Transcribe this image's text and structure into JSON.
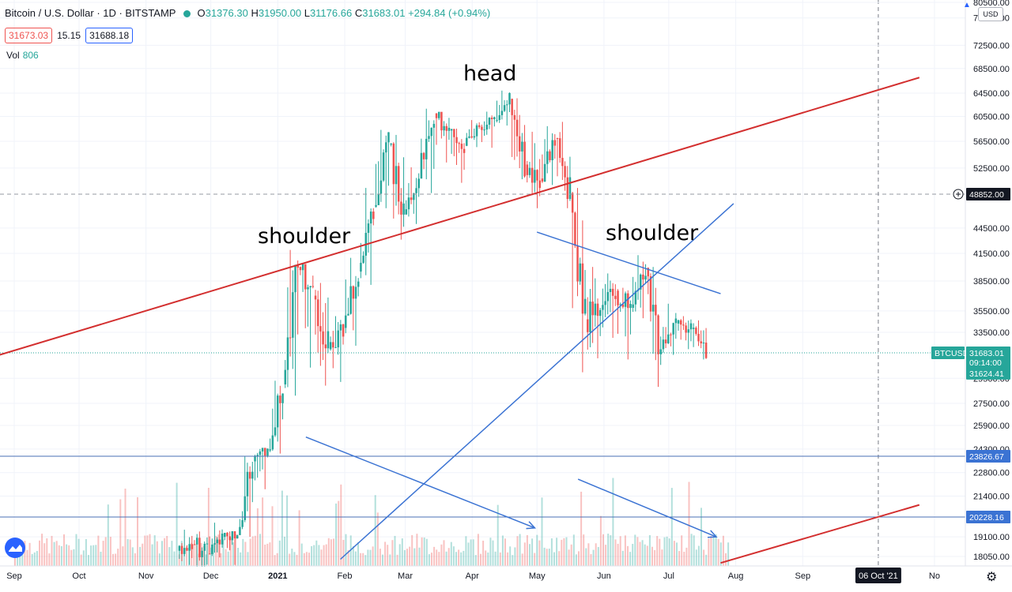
{
  "header": {
    "symbol": "Bitcoin / U.S. Dollar · 1D · BITSTAMP",
    "open_label": "O",
    "open": "31376.30",
    "high_label": "H",
    "high": "31950.00",
    "low_label": "L",
    "low": "31176.66",
    "close_label": "C",
    "close": "31683.01",
    "change": "+294.84 (+0.94%)"
  },
  "quote": {
    "bid": "31673.03",
    "spread": "15.15",
    "ask": "31688.18"
  },
  "volume": {
    "label": "Vol",
    "value": "806"
  },
  "currency": "USD",
  "annotations": {
    "shoulder_left": "shoulder",
    "head": "head",
    "shoulder_right": "shoulder"
  },
  "colors": {
    "up": "#26a69a",
    "down": "#ef5350",
    "trendline_red": "#d32f2f",
    "trendline_blue": "#3b73d3",
    "hline": "#4a6fb5",
    "price_line": "#26a69a"
  },
  "icons": {
    "logo": "tradingview-logo-icon",
    "settings": "gear-icon",
    "alert": "bell-icon",
    "crosshair": "crosshair-plus-icon"
  },
  "chart_data": {
    "type": "candlestick",
    "interval": "1D",
    "ylim": [
      17500,
      80500
    ],
    "y_ticks": [
      80500,
      77500,
      72500,
      68500,
      64500,
      60500,
      56500,
      52500,
      44500,
      41500,
      38500,
      35500,
      33500,
      29500,
      27500,
      25900,
      24300,
      22800,
      21400,
      19100,
      18050
    ],
    "x_ticks": [
      "Sep",
      "Oct",
      "Nov",
      "Dec",
      "2021",
      "Feb",
      "Mar",
      "Apr",
      "May",
      "Jun",
      "Jul",
      "Aug",
      "Sep",
      "06 Oct '21",
      "No"
    ],
    "price_labels": [
      {
        "name": "crosshair",
        "value": "48852.00",
        "style": "dark"
      },
      {
        "name": "symbol",
        "value": "BTCUSD",
        "style": "green"
      },
      {
        "name": "last",
        "value": "31683.01",
        "style": "green"
      },
      {
        "name": "countdown",
        "value": "09:14:00",
        "style": "green"
      },
      {
        "name": "low-line",
        "value": "31624.41",
        "style": "green"
      },
      {
        "name": "support-1",
        "value": "23826.67",
        "style": "blue"
      },
      {
        "name": "support-2",
        "value": "20228.16",
        "style": "blue"
      }
    ],
    "ohlc_weekly": [
      {
        "date": "2020-11-16",
        "o": 18350,
        "h": 19500,
        "l": 17600,
        "c": 18700
      },
      {
        "date": "2020-11-23",
        "o": 18700,
        "h": 19400,
        "l": 16200,
        "c": 18200
      },
      {
        "date": "2020-11-30",
        "o": 18200,
        "h": 19900,
        "l": 18000,
        "c": 19100
      },
      {
        "date": "2020-12-07",
        "o": 19100,
        "h": 19400,
        "l": 17600,
        "c": 19200
      },
      {
        "date": "2020-12-14",
        "o": 19200,
        "h": 23800,
        "l": 19100,
        "c": 23500
      },
      {
        "date": "2020-12-21",
        "o": 23500,
        "h": 24300,
        "l": 21800,
        "c": 24200
      },
      {
        "date": "2020-12-28",
        "o": 24200,
        "h": 29300,
        "l": 24000,
        "c": 29000
      },
      {
        "date": "2021-01-04",
        "o": 29000,
        "h": 41900,
        "l": 28100,
        "c": 40000
      },
      {
        "date": "2021-01-11",
        "o": 40000,
        "h": 40100,
        "l": 30400,
        "c": 37000
      },
      {
        "date": "2021-01-18",
        "o": 37000,
        "h": 38300,
        "l": 28900,
        "c": 32000
      },
      {
        "date": "2021-01-25",
        "o": 32000,
        "h": 35000,
        "l": 29200,
        "c": 33900
      },
      {
        "date": "2021-02-01",
        "o": 33900,
        "h": 41000,
        "l": 32300,
        "c": 39500
      },
      {
        "date": "2021-02-08",
        "o": 39500,
        "h": 49700,
        "l": 38100,
        "c": 47200
      },
      {
        "date": "2021-02-15",
        "o": 47200,
        "h": 58300,
        "l": 47000,
        "c": 56000
      },
      {
        "date": "2021-02-22",
        "o": 56000,
        "h": 57500,
        "l": 43100,
        "c": 46200
      },
      {
        "date": "2021-03-01",
        "o": 46200,
        "h": 52600,
        "l": 45000,
        "c": 51000
      },
      {
        "date": "2021-03-08",
        "o": 51000,
        "h": 61800,
        "l": 49000,
        "c": 61000
      },
      {
        "date": "2021-03-15",
        "o": 61000,
        "h": 61200,
        "l": 53300,
        "c": 58200
      },
      {
        "date": "2021-03-22",
        "o": 58200,
        "h": 58500,
        "l": 50400,
        "c": 55800
      },
      {
        "date": "2021-03-29",
        "o": 55800,
        "h": 59900,
        "l": 55600,
        "c": 58800
      },
      {
        "date": "2021-04-05",
        "o": 58800,
        "h": 61300,
        "l": 55500,
        "c": 59800
      },
      {
        "date": "2021-04-12",
        "o": 59800,
        "h": 64900,
        "l": 59000,
        "c": 63500
      },
      {
        "date": "2021-04-19",
        "o": 63500,
        "h": 63600,
        "l": 50900,
        "c": 53000
      },
      {
        "date": "2021-04-26",
        "o": 53000,
        "h": 58000,
        "l": 47000,
        "c": 51000
      },
      {
        "date": "2021-05-03",
        "o": 51000,
        "h": 58900,
        "l": 50100,
        "c": 57000
      },
      {
        "date": "2021-05-10",
        "o": 57000,
        "h": 59600,
        "l": 47000,
        "c": 49000
      },
      {
        "date": "2021-05-17",
        "o": 49000,
        "h": 49700,
        "l": 30000,
        "c": 34700
      },
      {
        "date": "2021-05-24",
        "o": 34700,
        "h": 40000,
        "l": 31200,
        "c": 35600
      },
      {
        "date": "2021-05-31",
        "o": 35600,
        "h": 39300,
        "l": 33000,
        "c": 37500
      },
      {
        "date": "2021-06-07",
        "o": 37500,
        "h": 37800,
        "l": 31100,
        "c": 35800
      },
      {
        "date": "2021-06-14",
        "o": 35800,
        "h": 41300,
        "l": 34800,
        "c": 39900
      },
      {
        "date": "2021-06-21",
        "o": 39900,
        "h": 40000,
        "l": 28800,
        "c": 32000
      },
      {
        "date": "2021-06-28",
        "o": 32000,
        "h": 36200,
        "l": 31500,
        "c": 34300
      },
      {
        "date": "2021-07-05",
        "o": 34300,
        "h": 35000,
        "l": 32000,
        "c": 33800
      },
      {
        "date": "2021-07-12",
        "o": 33800,
        "h": 34600,
        "l": 31100,
        "c": 31683
      }
    ],
    "trendlines": [
      {
        "name": "neckline-upper",
        "color": "red",
        "from": {
          "date": "2020-08-20",
          "price": 31200
        },
        "to": {
          "date": "2021-10-25",
          "price": 67000
        }
      },
      {
        "name": "neckline-lower",
        "color": "red",
        "from": {
          "date": "2021-07-25",
          "price": 17700
        },
        "to": {
          "date": "2021-10-25",
          "price": 20900
        }
      },
      {
        "name": "rising-support",
        "color": "blue",
        "from": {
          "date": "2021-01-30",
          "price": 17900
        },
        "to": {
          "date": "2021-07-31",
          "price": 47600
        }
      },
      {
        "name": "shoulder-resistance",
        "color": "blue",
        "from": {
          "date": "2021-05-01",
          "price": 44000
        },
        "to": {
          "date": "2021-07-25",
          "price": 37200
        }
      },
      {
        "name": "volume-decline-1",
        "color": "blue",
        "arrow": true,
        "from": {
          "date": "2021-01-14",
          "price": 25100
        },
        "to": {
          "date": "2021-04-30",
          "price": 19600
        }
      },
      {
        "name": "volume-decline-2",
        "color": "blue",
        "arrow": true,
        "from": {
          "date": "2021-05-20",
          "price": 22400
        },
        "to": {
          "date": "2021-07-23",
          "price": 19100
        }
      }
    ],
    "horizontal_lines": [
      {
        "name": "price-line",
        "value": 31683,
        "color": "green"
      },
      {
        "name": "support-1",
        "value": 23827,
        "color": "blue"
      },
      {
        "name": "support-2",
        "value": 20228,
        "color": "blue"
      },
      {
        "name": "crosshair-h",
        "value": 48852,
        "color": "gray",
        "dashed": true
      }
    ],
    "crosshair_date": "2021-10-06",
    "volume_visible": true
  }
}
